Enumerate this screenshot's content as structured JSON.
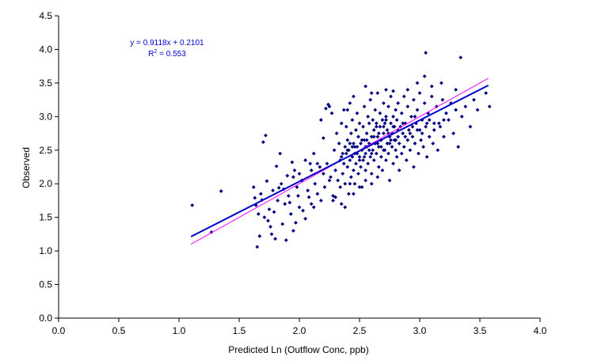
{
  "chart_data": {
    "type": "scatter",
    "xlabel": "Predicted Ln (Outflow Conc, ppb)",
    "ylabel": "Observed",
    "xlim": [
      0,
      4
    ],
    "ylim": [
      0,
      4.5
    ],
    "x_ticks": [
      "0.0",
      "0.5",
      "1.0",
      "1.5",
      "2.0",
      "2.5",
      "3.0",
      "3.5",
      "4.0"
    ],
    "y_ticks": [
      "0.0",
      "0.5",
      "1.0",
      "1.5",
      "2.0",
      "2.5",
      "3.0",
      "3.5",
      "4.0",
      "4.5"
    ],
    "grid": false,
    "colors": {
      "points": "#000080",
      "trendline": "#0000cc",
      "one_to_one": "#ff00ff",
      "equation": "#0000cc"
    },
    "trendline": {
      "slope": 0.9118,
      "intercept": 0.2101,
      "x_range": [
        1.1,
        3.57
      ]
    },
    "one_to_one_line": {
      "x_range": [
        1.1,
        3.57
      ]
    },
    "annotation": {
      "equation": "y = 0.9118x + 0.2101",
      "r2_prefix": "R",
      "r2_sup": "2",
      "r2_value": " = 0.553"
    },
    "points": [
      [
        1.11,
        1.68
      ],
      [
        1.27,
        1.28
      ],
      [
        1.35,
        1.89
      ],
      [
        1.62,
        1.95
      ],
      [
        1.64,
        1.68
      ],
      [
        1.65,
        1.06
      ],
      [
        1.66,
        1.55
      ],
      [
        1.67,
        1.22
      ],
      [
        1.68,
        1.85
      ],
      [
        1.7,
        2.62
      ],
      [
        1.72,
        2.72
      ],
      [
        1.74,
        1.45
      ],
      [
        1.75,
        1.62
      ],
      [
        1.77,
        1.25
      ],
      [
        1.78,
        1.9
      ],
      [
        1.8,
        1.18
      ],
      [
        1.82,
        1.75
      ],
      [
        1.84,
        2.45
      ],
      [
        1.85,
        2.0
      ],
      [
        1.86,
        1.4
      ],
      [
        1.88,
        1.7
      ],
      [
        1.9,
        2.12
      ],
      [
        1.91,
        1.82
      ],
      [
        1.93,
        1.55
      ],
      [
        1.95,
        1.3
      ],
      [
        1.96,
        2.2
      ],
      [
        1.98,
        1.95
      ],
      [
        2.0,
        1.65
      ],
      [
        2.02,
        2.05
      ],
      [
        2.05,
        1.48
      ],
      [
        1.69,
        1.76
      ],
      [
        1.73,
        2.04
      ],
      [
        1.76,
        1.36
      ],
      [
        1.79,
        1.58
      ],
      [
        1.81,
        2.26
      ],
      [
        1.87,
        1.92
      ],
      [
        1.89,
        1.16
      ],
      [
        1.92,
        1.72
      ],
      [
        1.94,
        2.32
      ],
      [
        1.97,
        1.42
      ],
      [
        1.63,
        1.79
      ],
      [
        1.71,
        1.5
      ],
      [
        1.83,
        1.94
      ],
      [
        1.99,
        1.82
      ],
      [
        2.03,
        1.6
      ],
      [
        2.07,
        1.9
      ],
      [
        2.09,
        2.3
      ],
      [
        2.1,
        1.7
      ],
      [
        2.12,
        2.45
      ],
      [
        2.13,
        2.0
      ],
      [
        2.15,
        1.85
      ],
      [
        2.17,
        2.25
      ],
      [
        2.2,
        2.68
      ],
      [
        2.21,
        1.95
      ],
      [
        2.23,
        2.3
      ],
      [
        2.24,
        3.18
      ],
      [
        2.26,
        2.1
      ],
      [
        2.27,
        3.05
      ],
      [
        2.28,
        1.82
      ],
      [
        2.29,
        2.5
      ],
      [
        2.3,
        2.2
      ],
      [
        2.31,
        2.75
      ],
      [
        2.32,
        2.05
      ],
      [
        2.33,
        2.6
      ],
      [
        2.34,
        1.95
      ],
      [
        2.35,
        2.4
      ],
      [
        2.35,
        2.9
      ],
      [
        2.36,
        2.15
      ],
      [
        2.37,
        3.1
      ],
      [
        2.37,
        2.3
      ],
      [
        2.38,
        2.55
      ],
      [
        2.38,
        2.0
      ],
      [
        2.39,
        2.45
      ],
      [
        2.39,
        2.85
      ],
      [
        2.4,
        2.25
      ],
      [
        2.4,
        2.65
      ],
      [
        2.41,
        1.85
      ],
      [
        2.41,
        2.5
      ],
      [
        2.42,
        2.35
      ],
      [
        2.42,
        3.2
      ],
      [
        2.43,
        2.1
      ],
      [
        2.43,
        2.75
      ],
      [
        2.44,
        2.4
      ],
      [
        2.44,
        2.95
      ],
      [
        2.45,
        2.2
      ],
      [
        2.45,
        2.6
      ],
      [
        2.46,
        2.45
      ],
      [
        2.46,
        2.0
      ],
      [
        2.47,
        2.8
      ],
      [
        2.47,
        2.3
      ],
      [
        2.48,
        2.55
      ],
      [
        2.48,
        3.05
      ],
      [
        2.49,
        2.15
      ],
      [
        2.49,
        2.7
      ],
      [
        2.5,
        2.4
      ],
      [
        2.5,
        2.9
      ],
      [
        2.51,
        2.25
      ],
      [
        2.51,
        2.6
      ],
      [
        2.52,
        1.95
      ],
      [
        2.52,
        2.5
      ],
      [
        2.53,
        2.85
      ],
      [
        2.53,
        2.35
      ],
      [
        2.54,
        2.65
      ],
      [
        2.54,
        3.15
      ],
      [
        2.55,
        2.45
      ],
      [
        2.55,
        2.2
      ],
      [
        2.56,
        2.75
      ],
      [
        2.56,
        2.55
      ],
      [
        2.57,
        3.0
      ],
      [
        2.57,
        2.3
      ],
      [
        2.58,
        2.6
      ],
      [
        2.58,
        2.9
      ],
      [
        2.59,
        2.4
      ],
      [
        2.59,
        3.25
      ],
      [
        2.6,
        2.7
      ],
      [
        2.6,
        2.15
      ],
      [
        2.61,
        2.5
      ],
      [
        2.61,
        2.95
      ],
      [
        2.62,
        2.35
      ],
      [
        2.62,
        2.8
      ],
      [
        2.63,
        3.1
      ],
      [
        2.63,
        2.6
      ],
      [
        2.64,
        2.45
      ],
      [
        2.64,
        2.9
      ],
      [
        2.65,
        2.7
      ],
      [
        2.65,
        3.35
      ],
      [
        2.66,
        2.55
      ],
      [
        2.66,
        2.25
      ],
      [
        2.67,
        2.85
      ],
      [
        2.67,
        3.05
      ],
      [
        2.68,
        2.4
      ],
      [
        2.68,
        2.65
      ],
      [
        2.69,
        2.95
      ],
      [
        2.69,
        2.2
      ],
      [
        2.7,
        2.75
      ],
      [
        2.7,
        3.2
      ],
      [
        2.71,
        2.5
      ],
      [
        2.71,
        2.9
      ],
      [
        2.72,
        2.35
      ],
      [
        2.72,
        3.0
      ],
      [
        2.73,
        2.6
      ],
      [
        2.73,
        2.8
      ],
      [
        2.74,
        3.15
      ],
      [
        2.74,
        2.45
      ],
      [
        2.75,
        2.7
      ],
      [
        2.75,
        2.05
      ],
      [
        2.76,
        2.9
      ],
      [
        2.76,
        3.3
      ],
      [
        2.77,
        2.55
      ],
      [
        2.77,
        2.75
      ],
      [
        2.78,
        3.0
      ],
      [
        2.78,
        2.3
      ],
      [
        2.79,
        2.65
      ],
      [
        2.79,
        2.85
      ],
      [
        2.8,
        3.1
      ],
      [
        2.8,
        2.5
      ],
      [
        2.81,
        2.4
      ],
      [
        2.81,
        2.95
      ],
      [
        2.82,
        2.7
      ],
      [
        2.82,
        3.2
      ],
      [
        2.83,
        2.6
      ],
      [
        2.83,
        2.2
      ],
      [
        2.84,
        2.85
      ],
      [
        2.85,
        3.05
      ],
      [
        2.85,
        2.45
      ],
      [
        2.86,
        2.75
      ],
      [
        2.87,
        2.55
      ],
      [
        2.87,
        3.3
      ],
      [
        2.88,
        2.9
      ],
      [
        2.89,
        2.35
      ],
      [
        2.9,
        2.65
      ],
      [
        2.9,
        3.15
      ],
      [
        2.91,
        2.8
      ],
      [
        2.92,
        2.5
      ],
      [
        2.93,
        3.0
      ],
      [
        2.94,
        2.7
      ],
      [
        2.95,
        2.25
      ],
      [
        2.95,
        3.25
      ],
      [
        2.96,
        2.6
      ],
      [
        2.97,
        2.9
      ],
      [
        2.98,
        3.1
      ],
      [
        2.99,
        2.45
      ],
      [
        3.0,
        2.8
      ],
      [
        3.0,
        3.35
      ],
      [
        3.01,
        2.65
      ],
      [
        3.02,
        2.95
      ],
      [
        3.03,
        2.55
      ],
      [
        3.04,
        3.2
      ],
      [
        3.05,
        2.85
      ],
      [
        3.06,
        2.4
      ],
      [
        3.07,
        3.05
      ],
      [
        3.08,
        2.7
      ],
      [
        3.1,
        3.3
      ],
      [
        3.11,
        2.6
      ],
      [
        3.12,
        2.9
      ],
      [
        3.14,
        3.15
      ],
      [
        3.15,
        2.5
      ],
      [
        3.17,
        2.85
      ],
      [
        3.19,
        3.25
      ],
      [
        3.2,
        2.7
      ],
      [
        3.22,
        3.05
      ],
      [
        3.24,
        2.95
      ],
      [
        3.26,
        3.2
      ],
      [
        3.28,
        2.75
      ],
      [
        3.3,
        3.1
      ],
      [
        3.32,
        2.55
      ],
      [
        3.35,
        3.0
      ],
      [
        3.38,
        3.15
      ],
      [
        3.42,
        2.85
      ],
      [
        3.45,
        3.25
      ],
      [
        3.05,
        3.95
      ],
      [
        3.34,
        3.88
      ],
      [
        3.04,
        3.6
      ],
      [
        3.18,
        3.5
      ],
      [
        3.3,
        3.4
      ],
      [
        3.48,
        3.1
      ],
      [
        3.58,
        3.15
      ],
      [
        3.55,
        3.35
      ],
      [
        3.1,
        3.45
      ],
      [
        2.98,
        3.5
      ],
      [
        2.55,
        3.45
      ],
      [
        2.72,
        3.4
      ],
      [
        2.4,
        3.1
      ],
      [
        2.45,
        3.3
      ],
      [
        2.25,
        3.15
      ],
      [
        2.22,
        3.12
      ],
      [
        2.18,
        2.95
      ],
      [
        2.6,
        3.35
      ],
      [
        2.78,
        3.38
      ],
      [
        2.9,
        3.4
      ],
      [
        2.3,
        1.8
      ],
      [
        2.35,
        1.7
      ],
      [
        2.45,
        1.85
      ],
      [
        2.55,
        2.05
      ],
      [
        2.65,
        2.1
      ],
      [
        2.38,
        1.65
      ],
      [
        2.28,
        1.75
      ],
      [
        2.5,
        1.95
      ],
      [
        2.42,
        2.0
      ],
      [
        2.6,
        2.0
      ],
      [
        2.2,
        2.15
      ],
      [
        2.15,
        2.3
      ],
      [
        2.1,
        2.2
      ],
      [
        2.08,
        1.8
      ],
      [
        2.05,
        2.35
      ],
      [
        2.0,
        2.15
      ],
      [
        1.95,
        2.1
      ],
      [
        2.18,
        1.75
      ],
      [
        2.12,
        1.65
      ],
      [
        2.25,
        2.05
      ],
      [
        2.5,
        2.35
      ],
      [
        2.55,
        2.55
      ],
      [
        2.6,
        2.45
      ],
      [
        2.65,
        2.6
      ],
      [
        2.7,
        2.5
      ],
      [
        2.75,
        2.6
      ],
      [
        2.8,
        2.65
      ],
      [
        2.68,
        2.55
      ],
      [
        2.62,
        2.7
      ],
      [
        2.58,
        2.5
      ],
      [
        2.66,
        2.75
      ],
      [
        2.64,
        2.85
      ],
      [
        2.7,
        2.85
      ],
      [
        2.74,
        2.75
      ],
      [
        2.76,
        2.65
      ],
      [
        2.72,
        2.95
      ],
      [
        2.78,
        2.85
      ],
      [
        2.82,
        2.8
      ],
      [
        2.86,
        2.9
      ],
      [
        2.88,
        2.7
      ],
      [
        2.46,
        2.55
      ],
      [
        2.48,
        2.45
      ],
      [
        2.52,
        2.65
      ],
      [
        2.54,
        2.4
      ],
      [
        2.56,
        2.65
      ],
      [
        2.44,
        2.55
      ],
      [
        2.4,
        2.5
      ],
      [
        2.36,
        2.45
      ],
      [
        2.34,
        2.35
      ],
      [
        2.42,
        2.6
      ],
      [
        2.92,
        2.75
      ],
      [
        2.94,
        2.85
      ],
      [
        2.96,
        3.0
      ],
      [
        2.98,
        2.8
      ],
      [
        3.02,
        2.75
      ],
      [
        3.06,
        2.9
      ],
      [
        3.08,
        2.95
      ],
      [
        3.12,
        2.8
      ],
      [
        3.16,
        2.9
      ],
      [
        3.2,
        2.95
      ]
    ]
  }
}
